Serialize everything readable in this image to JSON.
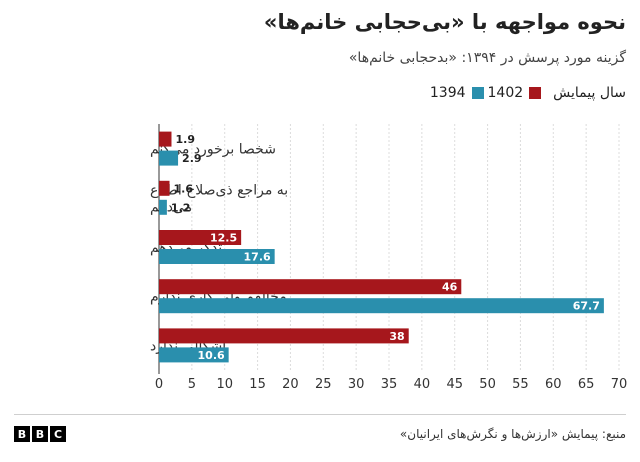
{
  "title": "نحوه مواجهه با «بی‌حجابی خانم‌ها»",
  "subtitle": "گزینه مورد پرسش در ۱۳۹۴: «بدحجابی خانم‌ها»",
  "legend": {
    "title": "سال پیمایش",
    "items": [
      {
        "label": "1402",
        "color": "#a6171c"
      },
      {
        "label": "1394",
        "color": "#2a8fad"
      }
    ]
  },
  "source": "منبع: پیمایش «ارزش‌ها و نگرش‌های ایرانیان»",
  "brand": [
    "B",
    "B",
    "C"
  ],
  "chart_data": {
    "type": "bar",
    "orientation": "horizontal",
    "categories": [
      [
        "شخصا برخورد می‌کنم"
      ],
      [
        "به مراجع ذی‌صلاح اطلاع",
        "می‌دهم"
      ],
      [
        "تذکر می‌دهم"
      ],
      [
        "مخالفم ولی کاری ندارم"
      ],
      [
        "اشکالی ندارد"
      ]
    ],
    "series": [
      {
        "name": "1402",
        "color": "#a6171c",
        "values": [
          1.9,
          1.6,
          12.5,
          46,
          38
        ]
      },
      {
        "name": "1394",
        "color": "#2a8fad",
        "values": [
          2.9,
          1.2,
          17.6,
          67.7,
          10.6
        ]
      }
    ],
    "xlim": [
      0,
      70
    ],
    "xticks": [
      0,
      5,
      10,
      15,
      20,
      25,
      30,
      35,
      40,
      45,
      50,
      55,
      60,
      65,
      70
    ],
    "grid": true,
    "legend_position": "top-right"
  }
}
